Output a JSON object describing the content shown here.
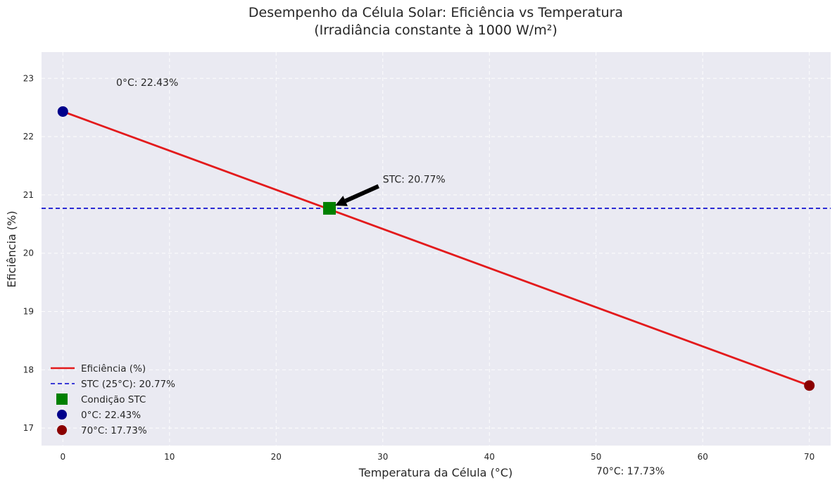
{
  "colors": {
    "plot_background": "#EAEAF2",
    "grid": "#FFFFFF",
    "efficiency_line": "#E31A1C",
    "stc_line": "#0000CD",
    "stc_marker": "#008000",
    "cold_marker": "#00008B",
    "hot_marker": "#8B0000",
    "arrow": "#000000"
  },
  "chart_data": {
    "type": "line",
    "title_line1": "Desempenho da Célula Solar: Eficiência vs Temperatura",
    "title_line2": "(Irradiância constante à 1000 W/m²)",
    "xlabel": "Temperatura da Célula (°C)",
    "ylabel": "Eficiência (%)",
    "xlim": [
      -2,
      72
    ],
    "ylim": [
      16.7,
      23.45
    ],
    "x_ticks": [
      0,
      10,
      20,
      30,
      40,
      50,
      60,
      70
    ],
    "y_ticks": [
      17,
      18,
      19,
      20,
      21,
      22,
      23
    ],
    "grid": true,
    "legend_position": "lower-left",
    "series": [
      {
        "name": "Eficiência (%)",
        "x": [
          0,
          70
        ],
        "y": [
          22.43,
          17.73
        ]
      }
    ],
    "reference_line": {
      "name": "STC (25°C): 20.77%",
      "y": 20.77,
      "style": "dashed"
    },
    "points": [
      {
        "name": "Condição STC",
        "x": 25,
        "y": 20.77,
        "marker": "square"
      },
      {
        "name": "0°C: 22.43%",
        "x": 0,
        "y": 22.43,
        "marker": "circle"
      },
      {
        "name": "70°C: 17.73%",
        "x": 70,
        "y": 17.73,
        "marker": "circle"
      }
    ],
    "annotations": [
      {
        "text": "0°C: 22.43%",
        "x": 5,
        "y": 22.93
      },
      {
        "text": "STC: 20.77%",
        "x": 30,
        "y": 21.27,
        "arrow_to": [
          25,
          20.77
        ]
      }
    ],
    "outside_annotation": {
      "text": "70°C: 17.73%"
    }
  }
}
